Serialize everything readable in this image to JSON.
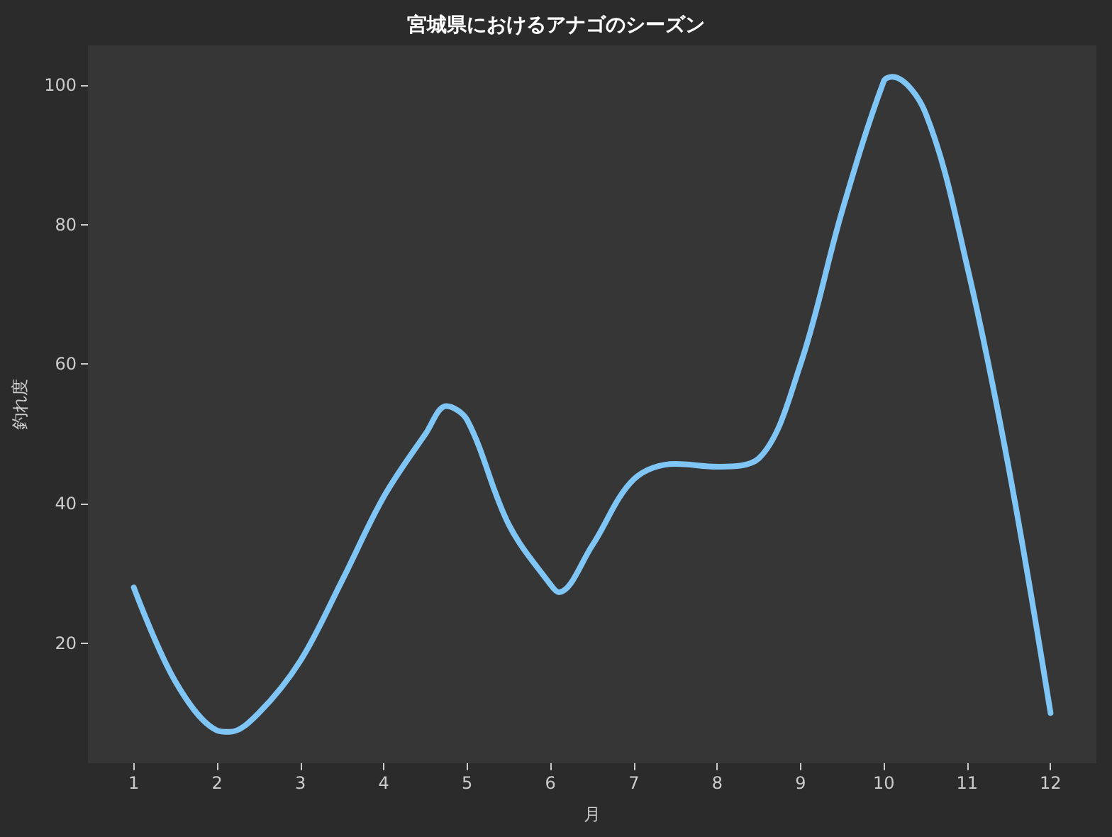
{
  "chart_data": {
    "type": "line",
    "title": "宮城県におけるアナゴのシーズン",
    "xlabel": "月",
    "ylabel": "釣れ度",
    "x": [
      1,
      1.5,
      2,
      2.15,
      2.5,
      3,
      3.5,
      4,
      4.5,
      4.75,
      5,
      5.5,
      6,
      6.1,
      6.5,
      7,
      7.5,
      8,
      8.5,
      9,
      9.5,
      10,
      10.1,
      10.5,
      11,
      11.5,
      12
    ],
    "series": [
      {
        "color": "#7fc6f7",
        "values": [
          28,
          14.5,
          7.5,
          7.3,
          10,
          17.5,
          29,
          41,
          50,
          54,
          52,
          37,
          28.4,
          27.3,
          34,
          43.5,
          45.7,
          45.3,
          46.5,
          60,
          82,
          100.6,
          101.2,
          96,
          74,
          45,
          10
        ]
      }
    ],
    "xlim": [
      0.45,
      12.55
    ],
    "ylim": [
      2.8,
      105.7
    ],
    "xticks": [
      1,
      2,
      3,
      4,
      5,
      6,
      7,
      8,
      9,
      10,
      11,
      12
    ],
    "yticks": [
      20,
      40,
      60,
      80,
      100
    ],
    "grid": false,
    "marker": "none",
    "line_style": "solid"
  }
}
